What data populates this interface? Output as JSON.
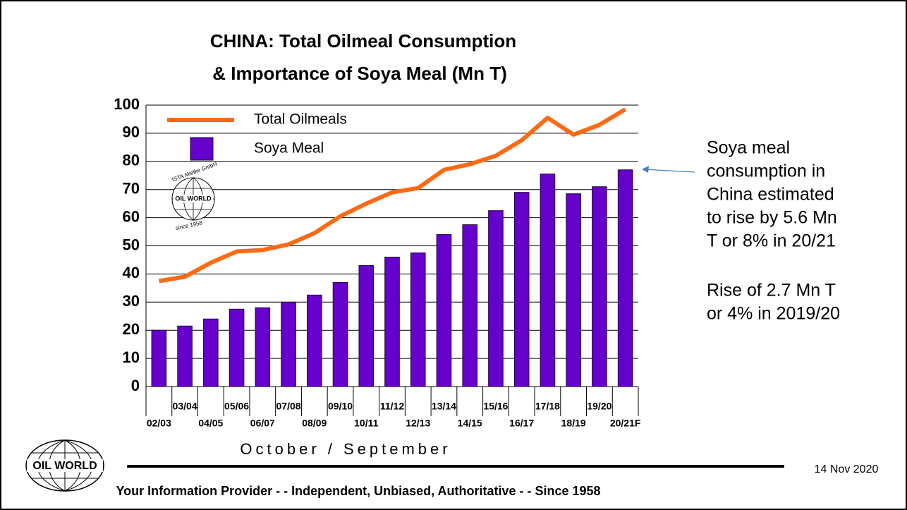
{
  "chart_data": {
    "type": "bar-line",
    "title": [
      "CHINA: Total Oilmeal Consumption",
      "& Importance of Soya Meal (Mn T)"
    ],
    "x_label": "October / September",
    "categories": [
      "02/03",
      "03/04",
      "04/05",
      "05/06",
      "06/07",
      "07/08",
      "08/09",
      "09/10",
      "10/11",
      "11/12",
      "12/13",
      "13/14",
      "14/15",
      "15/16",
      "16/17",
      "17/18",
      "18/19",
      "19/20",
      "20/21F"
    ],
    "series": [
      {
        "name": "Total Oilmeals",
        "type": "line",
        "color": "#ff6a13",
        "values": [
          37.5,
          39,
          44,
          48,
          48.5,
          50.5,
          54.5,
          60.5,
          65,
          69,
          70.5,
          77,
          79,
          82,
          87.5,
          95.5,
          89.5,
          93,
          98.5
        ]
      },
      {
        "name": "Soya Meal",
        "type": "bar",
        "color": "#6600cc",
        "values": [
          20,
          21.5,
          24,
          27.5,
          28,
          30,
          32.5,
          37,
          43,
          46,
          47.5,
          54,
          57.5,
          62.5,
          69,
          75.5,
          68.5,
          71,
          77
        ]
      }
    ],
    "ylim": [
      0,
      100
    ],
    "yticks": [
      0,
      10,
      20,
      30,
      40,
      50,
      60,
      70,
      80,
      90,
      100
    ],
    "grid": true,
    "legend": "top-left",
    "annotations": [
      [
        "Soya meal",
        "consumption  in",
        "China estimated",
        "to rise by 5.6 Mn",
        "T or 8% in 20/21"
      ],
      [
        "Rise of 2.7 Mn T",
        "or  4% in 2019/20"
      ]
    ]
  },
  "logo": {
    "name": "OIL WORLD",
    "top": "ISTA Mielke GmbH",
    "bottom": "since 1958"
  },
  "footer": {
    "date": "14 Nov 2020",
    "tagline": "Your Information Provider - - Independent, Unbiased, Authoritative - - Since 1958"
  }
}
